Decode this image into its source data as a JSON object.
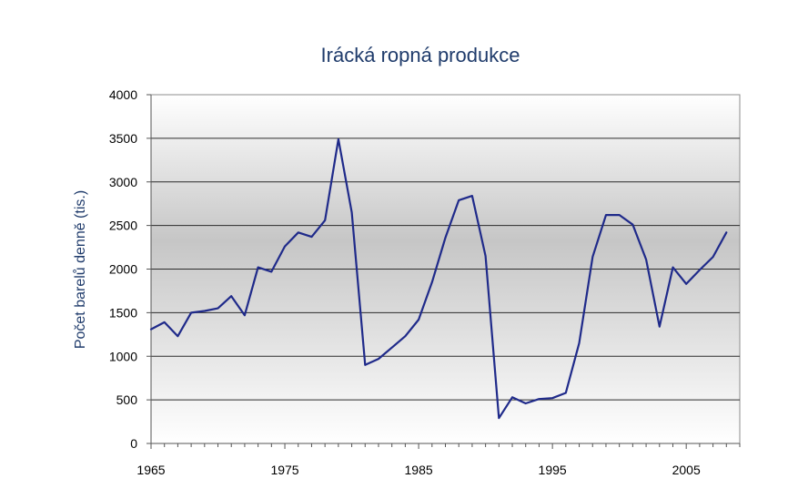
{
  "chart_data": {
    "type": "line",
    "title": "Irácká ropná produkce",
    "xlabel": "",
    "ylabel": "Počet barelů denně (tis.)",
    "xlim": [
      1965,
      2009
    ],
    "ylim": [
      0,
      4000
    ],
    "x_ticks": [
      "1965",
      "1975",
      "1985",
      "1995",
      "2005"
    ],
    "y_ticks": [
      "0",
      "500",
      "1000",
      "1500",
      "2000",
      "2500",
      "3000",
      "3500",
      "4000"
    ],
    "grid": true,
    "legend": "none",
    "line_color": "#1f2a8a",
    "series": [
      {
        "x": [
          1965,
          1966,
          1967,
          1968,
          1969,
          1970,
          1971,
          1972,
          1973,
          1974,
          1975,
          1976,
          1977,
          1978,
          1979,
          1980,
          1981,
          1982,
          1983,
          1984,
          1985,
          1986,
          1987,
          1988,
          1989,
          1990,
          1991,
          1992,
          1993,
          1994,
          1995,
          1996,
          1997,
          1998,
          1999,
          2000,
          2001,
          2002,
          2003,
          2004,
          2005,
          2006,
          2007,
          2008
        ],
        "values": [
          1310,
          1390,
          1230,
          1500,
          1520,
          1550,
          1690,
          1470,
          2020,
          1970,
          2260,
          2420,
          2370,
          2560,
          3490,
          2650,
          900,
          970,
          1100,
          1230,
          1420,
          1850,
          2360,
          2790,
          2840,
          2150,
          290,
          530,
          460,
          510,
          520,
          580,
          1150,
          2140,
          2620,
          2620,
          2510,
          2110,
          1340,
          2020,
          1830,
          1990,
          2140,
          2420
        ]
      }
    ]
  }
}
